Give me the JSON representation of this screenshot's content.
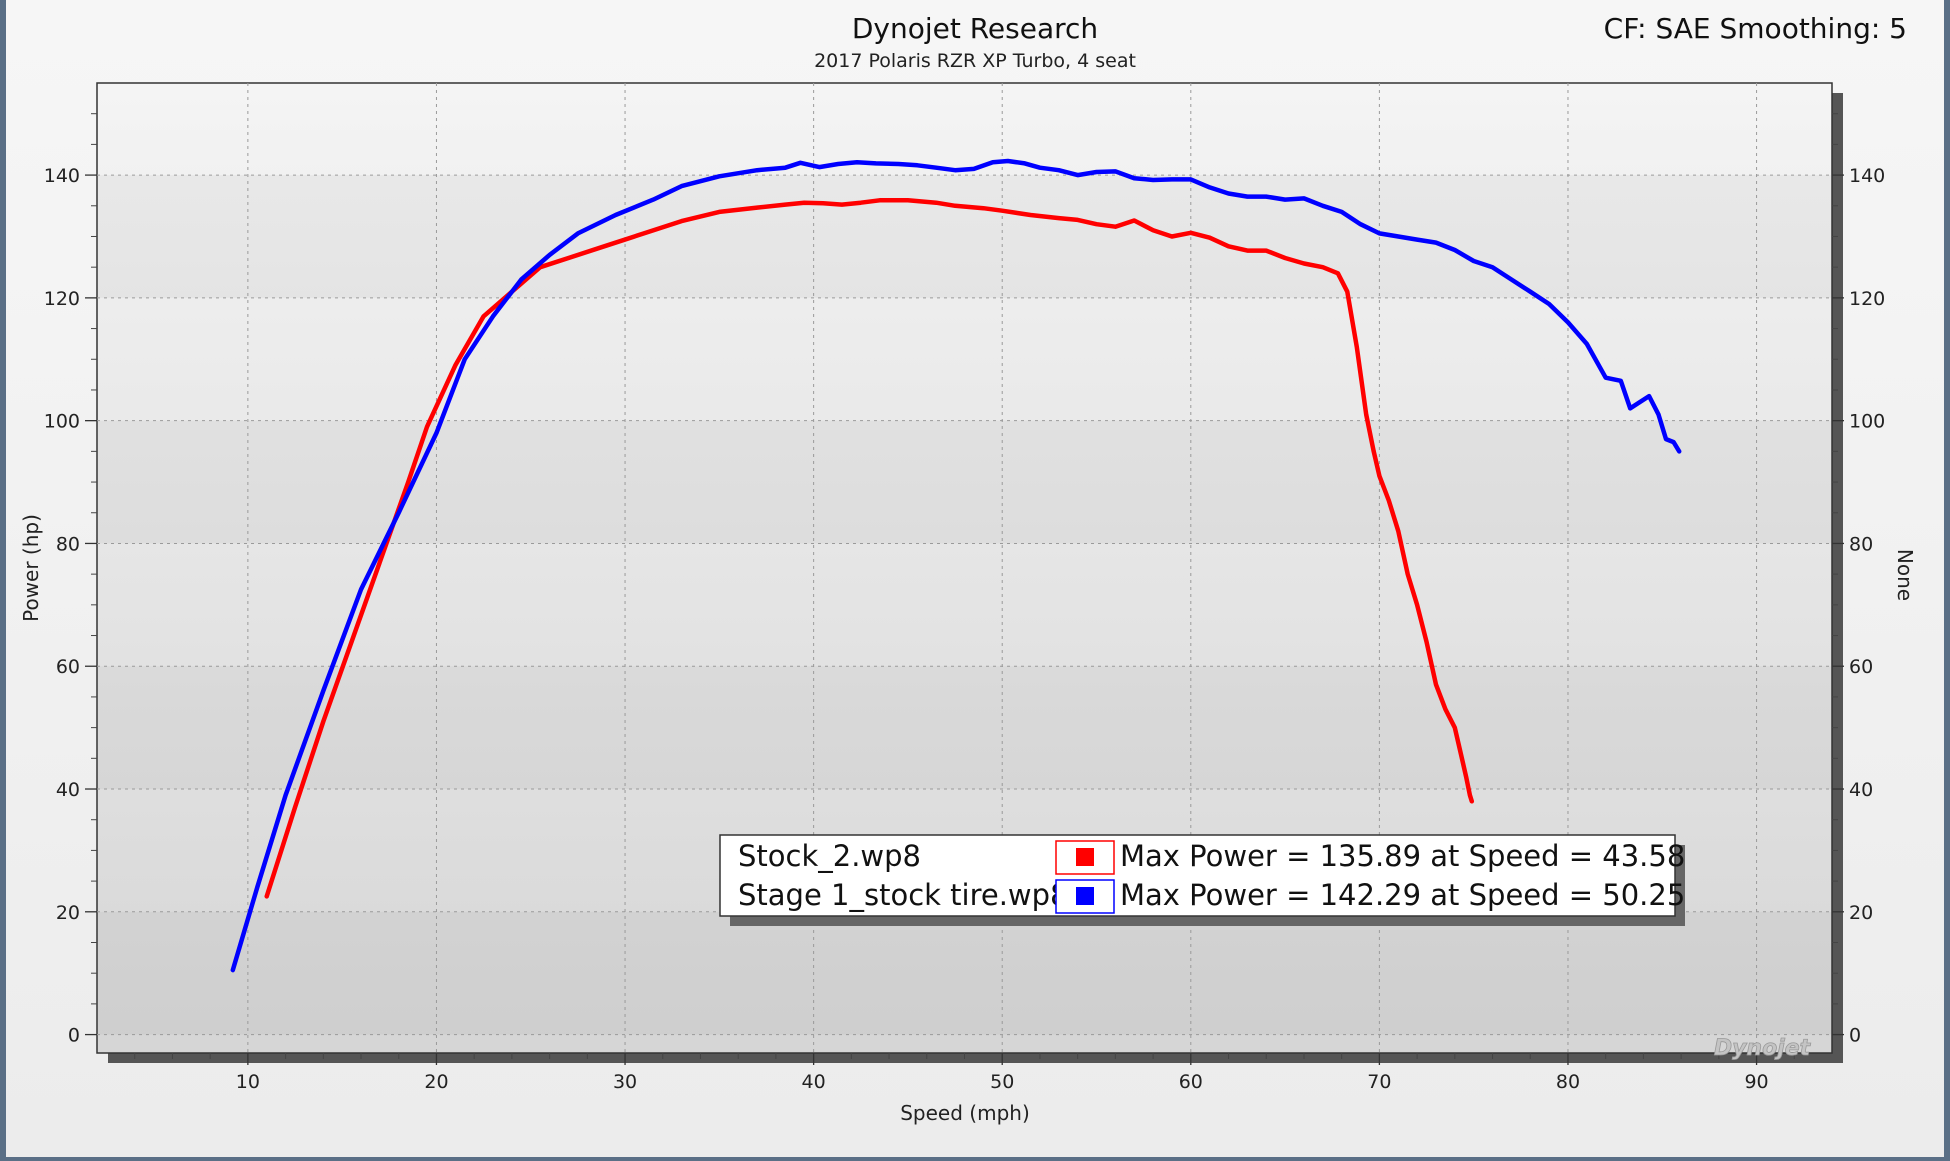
{
  "header": {
    "title": "Dynojet Research",
    "subtitle": "2017 Polaris RZR XP Turbo, 4 seat",
    "cf_label": "CF: SAE Smoothing: 5"
  },
  "brand_watermark": "Dynojet",
  "colors": {
    "stock": "#ff0000",
    "stage1": "#0000ff"
  },
  "chart_data": {
    "type": "line",
    "title": "Dynojet Research",
    "subtitle": "2017 Polaris RZR XP Turbo, 4 seat",
    "xlabel": "Speed (mph)",
    "ylabel": "Power (hp)",
    "y2label": "None",
    "xlim": [
      2,
      94
    ],
    "ylim": [
      -3,
      155
    ],
    "xticks": [
      10,
      20,
      30,
      40,
      50,
      60,
      70,
      80,
      90
    ],
    "yticks": [
      0,
      20,
      40,
      60,
      80,
      100,
      120,
      140
    ],
    "grid": true,
    "series": [
      {
        "name": "Stock_2.wp8",
        "color": "#ff0000",
        "legend_text": "Max Power = 135.89 at Speed = 43.58",
        "x": [
          11.0,
          12.5,
          14.0,
          15.5,
          17.0,
          18.5,
          19.5,
          21.0,
          22.5,
          24.0,
          25.5,
          27.0,
          29.0,
          31.0,
          33.0,
          35.0,
          37.0,
          38.5,
          39.5,
          40.5,
          41.5,
          42.5,
          43.5,
          45.0,
          46.5,
          47.5,
          49.0,
          50.0,
          51.5,
          53.0,
          54.0,
          55.0,
          56.0,
          57.0,
          58.0,
          59.0,
          60.0,
          61.0,
          62.0,
          63.0,
          64.0,
          65.0,
          66.0,
          67.0,
          67.8,
          68.3,
          68.8,
          69.3,
          69.7,
          70.0,
          70.5,
          71.0,
          71.5,
          72.0,
          72.5,
          73.0,
          73.5,
          74.0,
          74.3,
          74.6,
          74.8,
          74.9
        ],
        "y": [
          22.5,
          37,
          51,
          64,
          77,
          90,
          99,
          109,
          117,
          121,
          125,
          126.5,
          128.5,
          130.5,
          132.5,
          134,
          134.7,
          135.2,
          135.5,
          135.4,
          135.2,
          135.5,
          135.9,
          135.9,
          135.5,
          135.0,
          134.6,
          134.2,
          133.5,
          133.0,
          132.7,
          132.0,
          131.6,
          132.6,
          131.0,
          130.0,
          130.6,
          129.8,
          128.4,
          127.7,
          127.7,
          126.5,
          125.6,
          125.0,
          124.0,
          121.0,
          112.0,
          101.0,
          95.0,
          91.0,
          87.0,
          82.0,
          75.0,
          70.0,
          64.0,
          57.0,
          53.0,
          50.0,
          46.0,
          42.0,
          39.0,
          38.0
        ]
      },
      {
        "name": "Stage 1_stock tire.wp8",
        "color": "#0000ff",
        "legend_text": "Max Power = 142.29 at Speed = 50.25",
        "x": [
          9.2,
          10.5,
          12.0,
          14.0,
          16.0,
          18.0,
          20.0,
          21.5,
          23.0,
          24.5,
          26.0,
          27.5,
          29.5,
          31.5,
          33.0,
          35.0,
          37.0,
          38.5,
          39.3,
          40.3,
          41.3,
          42.3,
          43.3,
          44.5,
          45.5,
          46.5,
          47.5,
          48.5,
          49.5,
          50.3,
          51.2,
          52.0,
          53.0,
          54.0,
          55.0,
          56.0,
          57.0,
          58.0,
          59.0,
          60.0,
          61.0,
          62.0,
          63.0,
          64.0,
          65.0,
          66.0,
          67.0,
          68.0,
          69.0,
          70.0,
          71.0,
          72.0,
          73.0,
          74.0,
          75.0,
          76.0,
          77.0,
          78.0,
          79.0,
          80.0,
          81.0,
          82.0,
          82.8,
          83.3,
          83.8,
          84.3,
          84.8,
          85.2,
          85.6,
          85.9
        ],
        "y": [
          10.5,
          24,
          39,
          56,
          72.5,
          85,
          98,
          110,
          117,
          123,
          127,
          130.5,
          133.5,
          136,
          138.2,
          139.8,
          140.8,
          141.2,
          142.0,
          141.3,
          141.8,
          142.1,
          141.9,
          141.8,
          141.6,
          141.2,
          140.8,
          141.0,
          142.1,
          142.3,
          141.9,
          141.2,
          140.8,
          140.0,
          140.5,
          140.6,
          139.5,
          139.2,
          139.3,
          139.3,
          138.0,
          137.0,
          136.5,
          136.5,
          136.0,
          136.2,
          135.0,
          134.0,
          132.0,
          130.5,
          130.0,
          129.5,
          129.0,
          127.8,
          126.0,
          125.0,
          123.0,
          121.0,
          119.0,
          116.0,
          112.5,
          107.0,
          106.5,
          102.0,
          103.0,
          104.0,
          101.0,
          97.0,
          96.5,
          95.0
        ]
      }
    ],
    "legend": {
      "placement": "bottom-center",
      "entries": [
        {
          "name": "Stock_2.wp8",
          "text": "Max Power = 135.89 at Speed = 43.58",
          "color": "#ff0000"
        },
        {
          "name": "Stage 1_stock tire.wp8",
          "text": "Max Power = 142.29 at Speed = 50.25",
          "color": "#0000ff"
        }
      ]
    }
  }
}
